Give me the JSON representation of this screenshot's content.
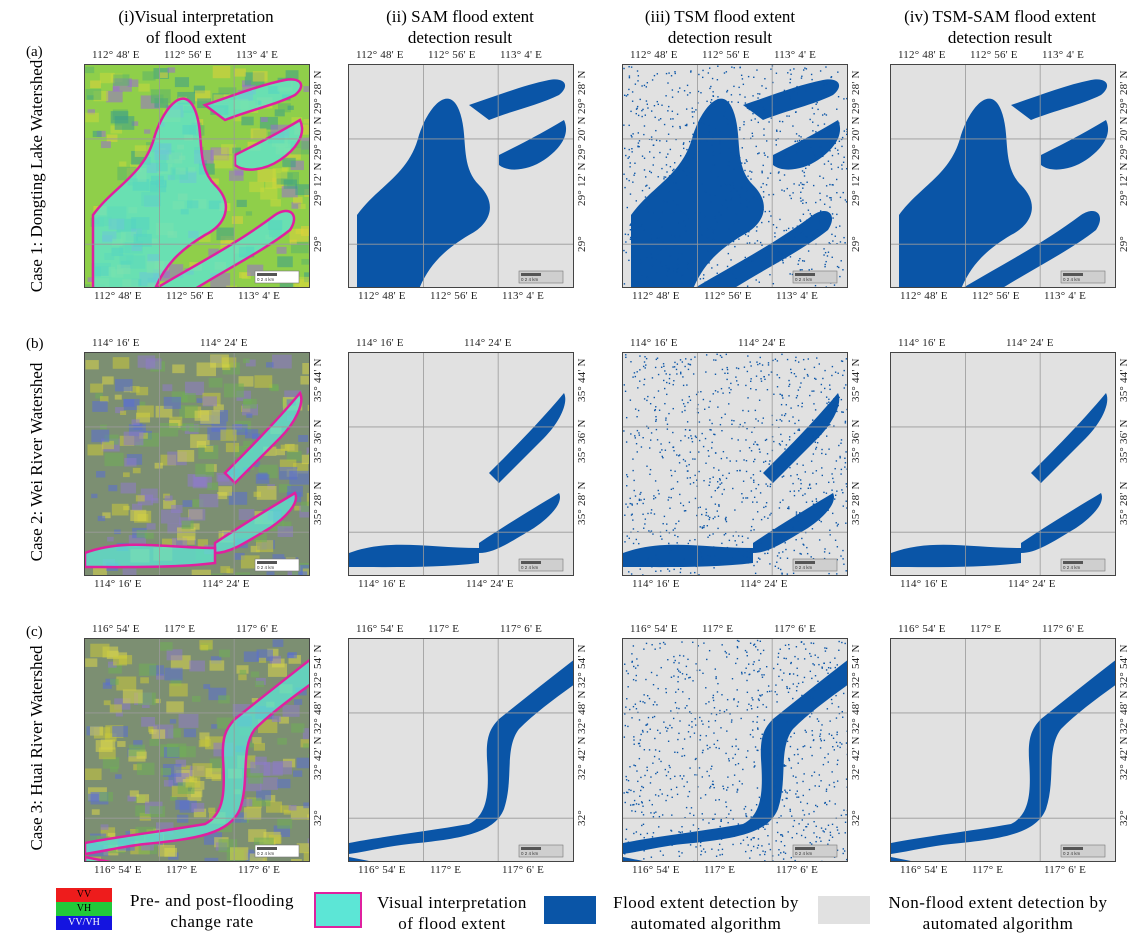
{
  "column_titles": [
    [
      "(i)Visual interpretation",
      "of flood extent"
    ],
    [
      "(ii) SAM flood extent",
      "detection result"
    ],
    [
      "(iii) TSM flood extent",
      "detection result"
    ],
    [
      "(iv) TSM-SAM flood extent",
      "detection result"
    ]
  ],
  "row_letters": [
    "(a)",
    "(b)",
    "(c)"
  ],
  "row_labels": [
    "Case 1: Dongting Lake Watershed",
    "Case 2: Wei River Watershed",
    "Case 3: Huai River Watershed"
  ],
  "rows": [
    {
      "top_ticks": [
        "112° 48' E",
        "112° 56' E",
        "113° 4' E"
      ],
      "bottom_ticks": [
        "112° 48' E",
        "112° 56' E",
        "113° 4' E"
      ],
      "lat_ticks": [
        "29° 28' N",
        "29° 20' N",
        "29° 12' N",
        "29°"
      ]
    },
    {
      "top_ticks": [
        "114° 16' E",
        "114° 24' E"
      ],
      "bottom_ticks": [
        "114° 16' E",
        "114° 24' E"
      ],
      "lat_ticks": [
        "35° 44' N",
        "35° 36' N",
        "35° 28' N"
      ]
    },
    {
      "top_ticks": [
        "116° 54' E",
        "117° E",
        "117° 6' E"
      ],
      "bottom_ticks": [
        "116° 54' E",
        "117° E",
        "117° 6' E"
      ],
      "lat_ticks": [
        "32° 54' N",
        "32° 48' N",
        "32° 42' N",
        "32°"
      ]
    }
  ],
  "scale_bar_label": "0 2 4 km",
  "legend": {
    "change_rate_bands": [
      "VV",
      "VH",
      "VV/VH"
    ],
    "change_rate_label": [
      "Pre- and post-flooding",
      "change rate"
    ],
    "visual_label": [
      "Visual interpretation",
      "of flood extent"
    ],
    "flood_label": [
      "Flood extent detection by",
      "automated  algorithm"
    ],
    "nonflood_label": [
      "Non-flood extent detection by",
      "automated  algorithm"
    ]
  },
  "colors": {
    "flood_blue": "#0a55a7",
    "nonflood_gray": "#e1e1e1",
    "visual_fill": "#5ce6d6",
    "visual_outline": "#e0209f",
    "vv_red": "#ee1c1c",
    "vh_green": "#22c93a",
    "vvvh_blue": "#1414e0"
  }
}
